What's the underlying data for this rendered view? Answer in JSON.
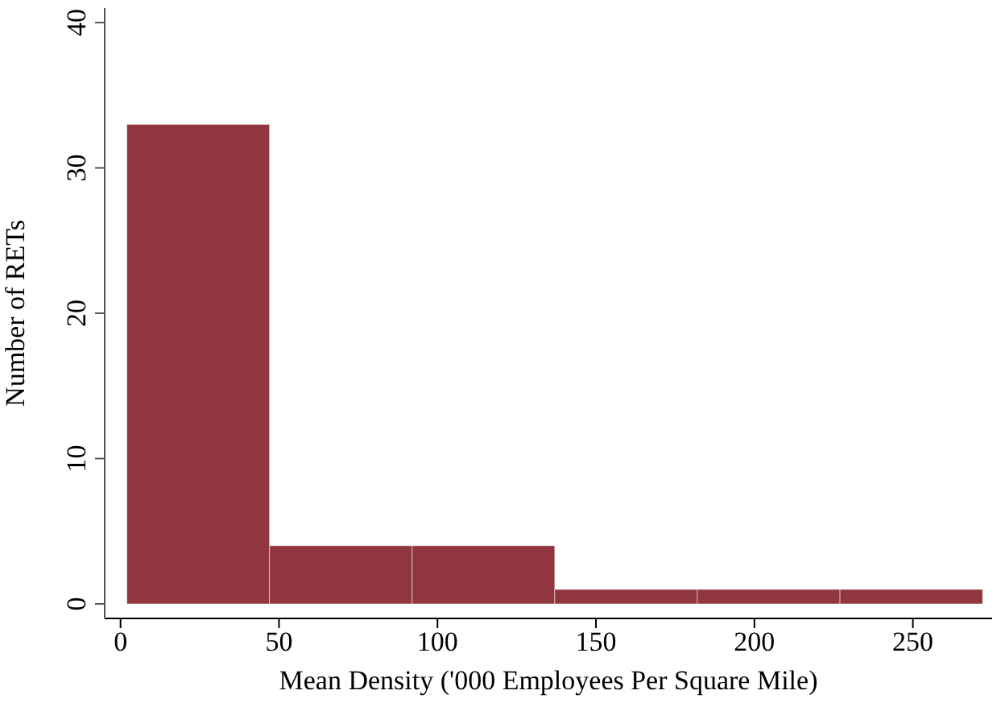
{
  "chart_data": {
    "type": "histogram",
    "xlabel": "Mean Density ('000 Employees Per Square Mile)",
    "ylabel": "Number of RETs",
    "bins": [
      2,
      47,
      92,
      137,
      182,
      227,
      272
    ],
    "values": [
      33,
      4,
      4,
      1,
      1,
      1
    ],
    "color": "#8f363e",
    "xlim": [
      -5,
      275
    ],
    "xticks": [
      0,
      50,
      100,
      150,
      200,
      250
    ],
    "ylim": [
      -1,
      41
    ],
    "yticks": [
      0,
      10,
      20,
      30,
      40
    ]
  }
}
